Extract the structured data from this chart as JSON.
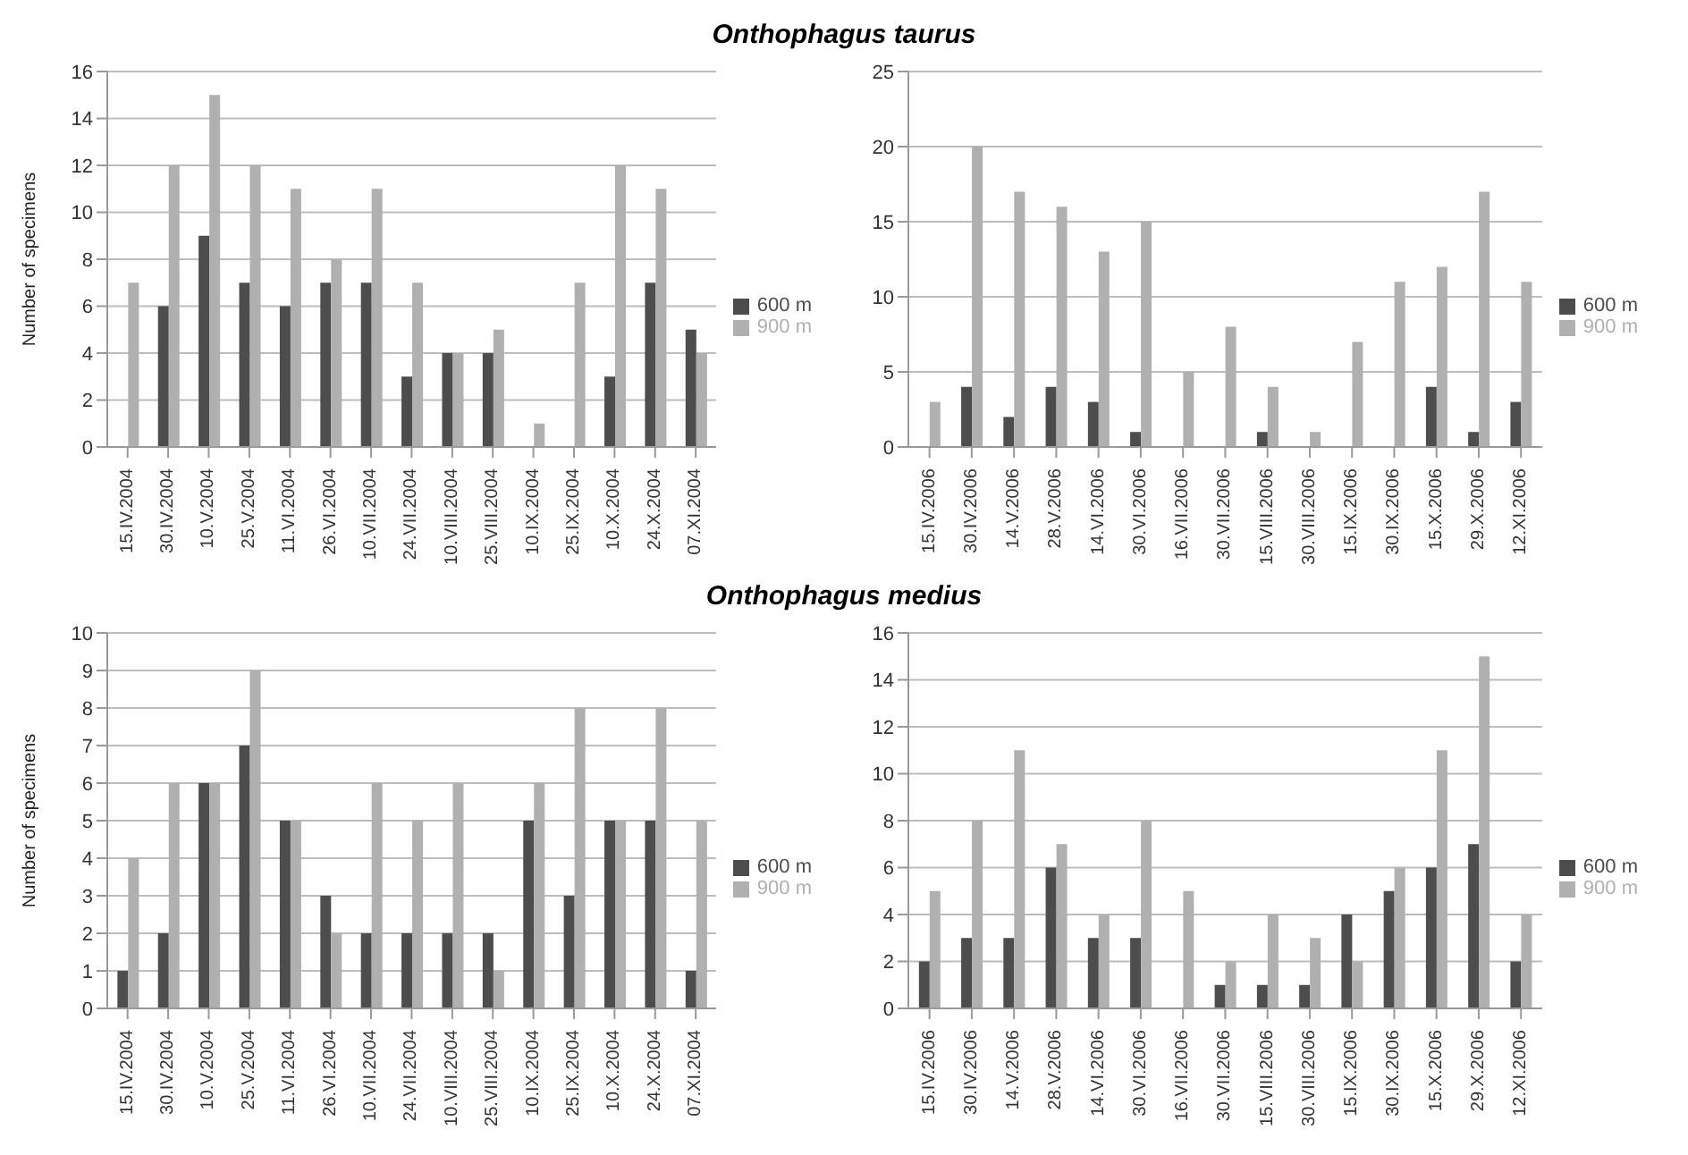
{
  "chart_data": [
    {
      "type": "bar",
      "title": "Onthophagus taurus",
      "ylabel": "Number of specimens",
      "categories": [
        "15.IV.2004",
        "30.IV.2004",
        "10.V.2004",
        "25.V.2004",
        "11.VI.2004",
        "26.VI.2004",
        "10.VII.2004",
        "24.VII.2004",
        "10.VIII.2004",
        "25.VIII.2004",
        "10.IX.2004",
        "25.IX.2004",
        "10.X.2004",
        "24.X.2004",
        "07.XI.2004"
      ],
      "series": [
        {
          "name": "600 m",
          "color": "#4d4d4d",
          "values": [
            0,
            6,
            9,
            7,
            6,
            7,
            7,
            3,
            4,
            4,
            0,
            0,
            3,
            7,
            5
          ]
        },
        {
          "name": "900 m",
          "color": "#b0b0b0",
          "values": [
            7,
            12,
            15,
            12,
            11,
            8,
            11,
            7,
            4,
            5,
            1,
            7,
            12,
            11,
            4
          ]
        }
      ],
      "ylim": [
        0,
        16
      ],
      "yticks": [
        0,
        2,
        4,
        6,
        8,
        10,
        12,
        14,
        16
      ],
      "grid": "y",
      "legend": "right"
    },
    {
      "type": "bar",
      "categories": [
        "15.IV.2006",
        "30.IV.2006",
        "14.V.2006",
        "28.V.2006",
        "14.VI.2006",
        "30.VI.2006",
        "16.VII.2006",
        "30.VII.2006",
        "15.VIII.2006",
        "30.VIII.2006",
        "15.IX.2006",
        "30.IX.2006",
        "15.X.2006",
        "29.X.2006",
        "12.XI.2006"
      ],
      "series": [
        {
          "name": "600 m",
          "color": "#4d4d4d",
          "values": [
            0,
            4,
            2,
            4,
            3,
            1,
            0,
            0,
            1,
            0,
            0,
            0,
            4,
            1,
            3
          ]
        },
        {
          "name": "900 m",
          "color": "#b0b0b0",
          "values": [
            3,
            20,
            17,
            16,
            13,
            15,
            5,
            8,
            4,
            1,
            7,
            11,
            12,
            17,
            11
          ]
        }
      ],
      "ylim": [
        0,
        25
      ],
      "yticks": [
        0,
        5,
        10,
        15,
        20,
        25
      ],
      "grid": "y",
      "legend": "right"
    },
    {
      "type": "bar",
      "title": "Onthophagus medius",
      "ylabel": "Number of specimens",
      "categories": [
        "15.IV.2004",
        "30.IV.2004",
        "10.V.2004",
        "25.V.2004",
        "11.VI.2004",
        "26.VI.2004",
        "10.VII.2004",
        "24.VII.2004",
        "10.VIII.2004",
        "25.VIII.2004",
        "10.IX.2004",
        "25.IX.2004",
        "10.X.2004",
        "24.X.2004",
        "07.XI.2004"
      ],
      "series": [
        {
          "name": "600 m",
          "color": "#4d4d4d",
          "values": [
            1,
            2,
            6,
            7,
            5,
            3,
            2,
            2,
            2,
            2,
            5,
            3,
            5,
            5,
            1
          ]
        },
        {
          "name": "900 m",
          "color": "#b0b0b0",
          "values": [
            4,
            6,
            6,
            9,
            5,
            2,
            6,
            5,
            6,
            1,
            6,
            8,
            5,
            8,
            5
          ]
        }
      ],
      "ylim": [
        0,
        10
      ],
      "yticks": [
        0,
        1,
        2,
        3,
        4,
        5,
        6,
        7,
        8,
        9,
        10
      ],
      "grid": "y",
      "legend": "right"
    },
    {
      "type": "bar",
      "categories": [
        "15.IV.2006",
        "30.IV.2006",
        "14.V.2006",
        "28.V.2006",
        "14.VI.2006",
        "30.VI.2006",
        "16.VII.2006",
        "30.VII.2006",
        "15.VIII.2006",
        "30.VIII.2006",
        "15.IX.2006",
        "30.IX.2006",
        "15.X.2006",
        "29.X.2006",
        "12.XI.2006"
      ],
      "series": [
        {
          "name": "600 m",
          "color": "#4d4d4d",
          "values": [
            2,
            3,
            3,
            6,
            3,
            3,
            0,
            1,
            1,
            1,
            4,
            5,
            6,
            7,
            2
          ]
        },
        {
          "name": "900 m",
          "color": "#b0b0b0",
          "values": [
            5,
            8,
            11,
            7,
            4,
            8,
            5,
            2,
            4,
            3,
            2,
            6,
            11,
            15,
            4
          ]
        }
      ],
      "ylim": [
        0,
        16
      ],
      "yticks": [
        0,
        2,
        4,
        6,
        8,
        10,
        12,
        14,
        16
      ],
      "grid": "y",
      "legend": "right"
    }
  ]
}
